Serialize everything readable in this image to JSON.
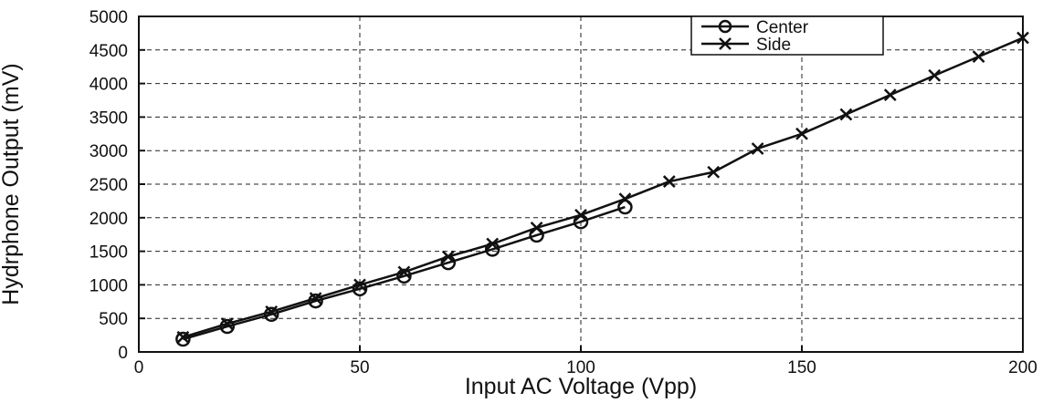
{
  "chart_data": {
    "type": "line",
    "title": "",
    "xlabel": "Input AC Voltage (Vpp)",
    "ylabel": "Hydrphone Output (mV)",
    "xlim": [
      0,
      200
    ],
    "ylim": [
      0,
      5000
    ],
    "xticks": [
      0,
      50,
      100,
      150,
      200
    ],
    "yticks": [
      0,
      500,
      1000,
      1500,
      2000,
      2500,
      3000,
      3500,
      4000,
      4500,
      5000
    ],
    "grid": true,
    "legend_position": "top-right",
    "series": [
      {
        "name": "Center",
        "marker": "circle",
        "x": [
          10,
          20,
          30,
          40,
          50,
          60,
          70,
          80,
          90,
          100,
          110
        ],
        "y": [
          190,
          380,
          560,
          760,
          940,
          1130,
          1330,
          1530,
          1740,
          1940,
          2160
        ]
      },
      {
        "name": "Side",
        "marker": "x",
        "x": [
          10,
          20,
          30,
          40,
          50,
          60,
          70,
          80,
          90,
          100,
          110,
          120,
          130,
          140,
          150,
          160,
          170,
          180,
          190,
          200
        ],
        "y": [
          220,
          420,
          600,
          800,
          1000,
          1190,
          1420,
          1610,
          1850,
          2040,
          2280,
          2540,
          2680,
          3030,
          3250,
          3540,
          3830,
          4120,
          4400,
          4680
        ]
      }
    ]
  }
}
